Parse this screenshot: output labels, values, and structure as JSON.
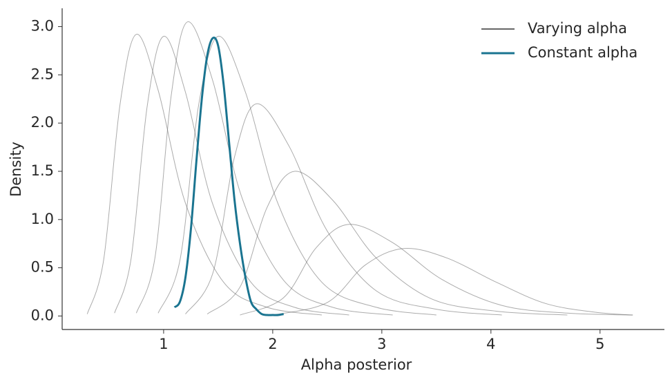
{
  "chart_data": {
    "type": "line",
    "x_label": "Alpha posterior",
    "y_label": "Density",
    "xlim": [
      0.07,
      5.59
    ],
    "ylim": [
      -0.14,
      3.19
    ],
    "xticks": [
      1,
      2,
      3,
      4,
      5
    ],
    "yticks": [
      {
        "value": 0,
        "label": "0.0"
      },
      {
        "value": 0.5,
        "label": "0.5"
      },
      {
        "value": 1,
        "label": "1.0"
      },
      {
        "value": 1.5,
        "label": "1.5"
      },
      {
        "value": 2,
        "label": "2.0"
      },
      {
        "value": 2.5,
        "label": "2.5"
      },
      {
        "value": 3,
        "label": "3.0"
      }
    ],
    "legend": "upper right",
    "series": [
      {
        "name": "Varying alpha",
        "color": "#666666",
        "lines": [
          {
            "x": [
              0.3,
              0.45,
              0.6,
              0.75,
              0.95,
              1.2,
              1.55,
              1.95,
              2.45
            ],
            "values": [
              0.02,
              0.58,
              2.19,
              2.92,
              2.34,
              1.17,
              0.35,
              0.09,
              0.01
            ]
          },
          {
            "x": [
              0.55,
              0.7,
              0.85,
              1.0,
              1.2,
              1.45,
              1.8,
              2.2,
              2.7
            ],
            "values": [
              0.03,
              0.58,
              2.18,
              2.9,
              2.32,
              1.16,
              0.35,
              0.09,
              0.01
            ]
          },
          {
            "x": [
              0.75,
              0.92,
              1.07,
              1.22,
              1.45,
              1.72,
              2.1,
              2.55,
              3.1
            ],
            "values": [
              0.03,
              0.6,
              2.29,
              3.05,
              2.44,
              1.22,
              0.37,
              0.09,
              0.01
            ]
          },
          {
            "x": [
              0.95,
              1.15,
              1.32,
              1.5,
              1.75,
              2.05,
              2.45,
              2.95,
              3.5
            ],
            "values": [
              0.03,
              0.58,
              2.18,
              2.9,
              2.32,
              1.16,
              0.35,
              0.09,
              0.01
            ]
          },
          {
            "x": [
              1.2,
              1.45,
              1.65,
              1.85,
              2.15,
              2.5,
              2.95,
              3.5,
              4.1
            ],
            "values": [
              0.02,
              0.44,
              1.65,
              2.2,
              1.76,
              0.88,
              0.26,
              0.07,
              0.01
            ]
          },
          {
            "x": [
              1.4,
              1.7,
              1.95,
              2.2,
              2.55,
              2.95,
              3.45,
              4.05,
              4.7
            ],
            "values": [
              0.02,
              0.3,
              1.13,
              1.5,
              1.2,
              0.6,
              0.18,
              0.05,
              0.01
            ]
          },
          {
            "x": [
              1.7,
              2.1,
              2.4,
              2.7,
              3.1,
              3.55,
              4.1,
              4.7,
              5.3
            ],
            "values": [
              0.01,
              0.19,
              0.71,
              0.95,
              0.76,
              0.38,
              0.11,
              0.03,
              0.01
            ]
          },
          {
            "x": [
              2.0,
              2.5,
              2.85,
              3.2,
              3.6,
              4.05,
              4.5,
              4.95,
              5.3
            ],
            "values": [
              0.01,
              0.14,
              0.53,
              0.7,
              0.6,
              0.35,
              0.13,
              0.04,
              0.01
            ]
          }
        ]
      },
      {
        "name": "Constant alpha",
        "color": "#1a7490",
        "x": [
          1.1,
          1.15,
          1.2,
          1.25,
          1.3,
          1.35,
          1.4,
          1.45,
          1.5,
          1.55,
          1.6,
          1.65,
          1.7,
          1.75,
          1.8,
          1.85,
          1.9,
          1.95,
          2.0,
          2.05,
          2.1
        ],
        "values": [
          0.09,
          0.15,
          0.4,
          0.9,
          1.6,
          2.25,
          2.7,
          2.88,
          2.8,
          2.4,
          1.8,
          1.2,
          0.75,
          0.4,
          0.15,
          0.07,
          0.02,
          0.01,
          0.01,
          0.01,
          0.02
        ]
      }
    ]
  }
}
